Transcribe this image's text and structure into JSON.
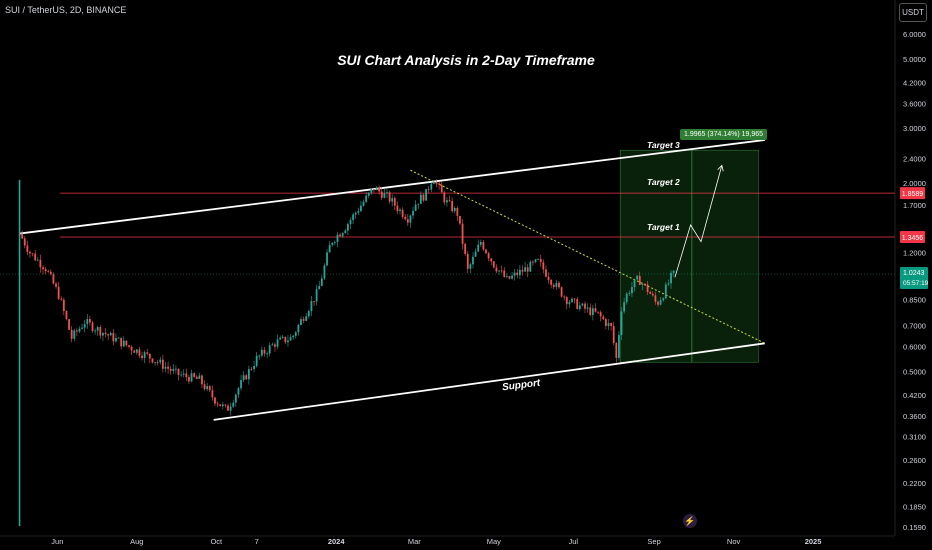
{
  "header": {
    "symbol": "SUI / TetherUS, 2D, BINANCE",
    "currency": "USDT"
  },
  "chart_data": {
    "type": "candlestick",
    "title": "SUI Chart Analysis in 2-Day Timeframe",
    "y_scale": "log",
    "ylim": [
      0.159,
      7.0
    ],
    "y_ticks": [
      "6.0000",
      "5.0000",
      "4.2000",
      "3.6000",
      "3.0000",
      "2.4000",
      "2.0000",
      "1.7000",
      "1.2000",
      "0.8500",
      "0.7000",
      "0.6000",
      "0.5000",
      "0.4200",
      "0.3600",
      "0.3100",
      "0.2600",
      "0.2200",
      "0.1850",
      "0.1590"
    ],
    "x_ticks": [
      "Jun",
      "Aug",
      "Oct",
      "7",
      "2024",
      "Mar",
      "May",
      "Jul",
      "Sep",
      "Nov",
      "2025"
    ],
    "price_path": [
      [
        "2023-05-03",
        2.05,
        0.16
      ],
      [
        "2023-05-05",
        1.38,
        1.38
      ],
      [
        "2023-05-13",
        1.2,
        1.2
      ],
      [
        "2023-05-25",
        1.07,
        1.07
      ],
      [
        "2023-06-04",
        0.88,
        0.88
      ],
      [
        "2023-06-14",
        0.64,
        0.64
      ],
      [
        "2023-06-24",
        0.72,
        0.72
      ],
      [
        "2023-07-10",
        0.66,
        0.66
      ],
      [
        "2023-07-28",
        0.6,
        0.6
      ],
      [
        "2023-08-15",
        0.55,
        0.55
      ],
      [
        "2023-09-03",
        0.49,
        0.49
      ],
      [
        "2023-09-20",
        0.47,
        0.47
      ],
      [
        "2023-10-01",
        0.41,
        0.41
      ],
      [
        "2023-10-11",
        0.375,
        0.375
      ],
      [
        "2023-10-21",
        0.45,
        0.45
      ],
      [
        "2023-11-03",
        0.55,
        0.55
      ],
      [
        "2023-11-18",
        0.62,
        0.62
      ],
      [
        "2023-11-30",
        0.64,
        0.64
      ],
      [
        "2023-12-08",
        0.74,
        0.74
      ],
      [
        "2023-12-20",
        0.9,
        0.9
      ],
      [
        "2023-12-30",
        1.3,
        1.3
      ],
      [
        "2024-01-10",
        1.45,
        1.45
      ],
      [
        "2024-01-22",
        1.7,
        1.7
      ],
      [
        "2024-02-01",
        1.93,
        1.93
      ],
      [
        "2024-02-12",
        1.8,
        1.8
      ],
      [
        "2024-02-20",
        1.65,
        1.65
      ],
      [
        "2024-02-27",
        1.55,
        1.55
      ],
      [
        "2024-03-05",
        1.75,
        1.75
      ],
      [
        "2024-03-12",
        1.85,
        1.85
      ],
      [
        "2024-03-17",
        2.1,
        2.1
      ],
      [
        "2024-03-27",
        1.75,
        1.75
      ],
      [
        "2024-04-05",
        1.6,
        1.6
      ],
      [
        "2024-04-13",
        1.05,
        1.05
      ],
      [
        "2024-04-23",
        1.3,
        1.3
      ],
      [
        "2024-05-03",
        1.1,
        1.1
      ],
      [
        "2024-05-13",
        0.98,
        0.98
      ],
      [
        "2024-05-25",
        1.05,
        1.05
      ],
      [
        "2024-06-06",
        1.12,
        1.12
      ],
      [
        "2024-06-16",
        0.98,
        0.98
      ],
      [
        "2024-06-28",
        0.85,
        0.85
      ],
      [
        "2024-07-10",
        0.8,
        0.8
      ],
      [
        "2024-07-22",
        0.76,
        0.76
      ],
      [
        "2024-08-01",
        0.69,
        0.69
      ],
      [
        "2024-08-05",
        0.55,
        0.55
      ],
      [
        "2024-08-09",
        0.8,
        0.8
      ],
      [
        "2024-08-14",
        0.9,
        0.9
      ],
      [
        "2024-08-22",
        0.99,
        0.99
      ],
      [
        "2024-08-30",
        0.9,
        0.9
      ],
      [
        "2024-09-05",
        0.82,
        0.82
      ],
      [
        "2024-09-11",
        0.9,
        0.9
      ],
      [
        "2024-09-17",
        1.02,
        1.02
      ]
    ],
    "levels": [
      {
        "label": "1.3456",
        "value": 1.3456
      },
      {
        "label": "1.8589",
        "value": 1.8589
      }
    ],
    "current_price": {
      "label": "1.0243",
      "countdown": "05:57:19",
      "value": 1.0243
    },
    "trendlines": {
      "resistance": [
        [
          "2023-05-03",
          1.38
        ],
        [
          "2024-11-25",
          2.75
        ]
      ],
      "support": [
        [
          "2023-09-29",
          0.35
        ],
        [
          "2024-11-25",
          0.615
        ]
      ],
      "dotted_resistance": [
        [
          "2024-02-27",
          2.2
        ],
        [
          "2024-11-25",
          0.615
        ]
      ]
    },
    "target_box": {
      "x_start": "2024-08-06",
      "x_end": "2024-11-20",
      "y_top": 2.55,
      "y_bottom": 0.535,
      "vline": "2024-09-30"
    },
    "projection_path": [
      [
        "2024-09-17",
        1.0
      ],
      [
        "2024-09-29",
        1.47
      ],
      [
        "2024-10-07",
        1.3
      ],
      [
        "2024-10-23",
        2.28
      ]
    ],
    "annotations": {
      "target1": "Target 1",
      "target2": "Target 2",
      "target3": "Target 3",
      "support": "Support",
      "measure": "1.9965 (374.14%) 19,965"
    },
    "colors": {
      "up": "#26a69a",
      "down": "#ef5350",
      "level": "#f23645",
      "trend": "#ffffff",
      "dotted": "#cddc39",
      "box": "#1b5e20",
      "price_tag": "#089981"
    }
  }
}
